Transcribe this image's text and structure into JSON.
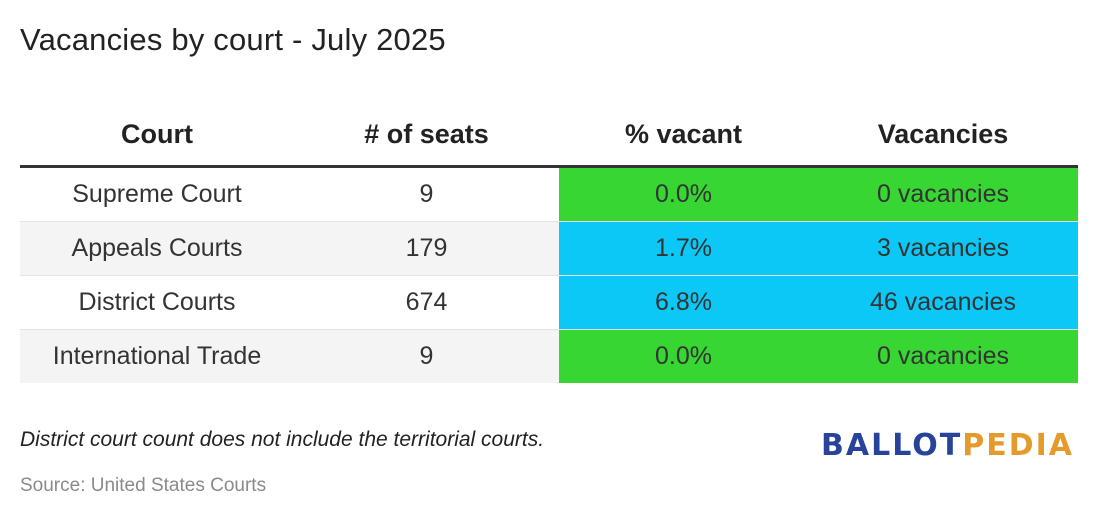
{
  "chart_data": {
    "type": "table",
    "title": "Vacancies by court - July 2025",
    "columns": [
      "Court",
      "# of seats",
      "% vacant",
      "Vacancies"
    ],
    "rows": [
      {
        "court": "Supreme Court",
        "seats": "9",
        "pct_vacant": "0.0%",
        "vacancies": "0 vacancies",
        "highlight": "#37d633"
      },
      {
        "court": "Appeals Courts",
        "seats": "179",
        "pct_vacant": "1.7%",
        "vacancies": "3 vacancies",
        "highlight": "#0bc8f7"
      },
      {
        "court": "District Courts",
        "seats": "674",
        "pct_vacant": "6.8%",
        "vacancies": "46 vacancies",
        "highlight": "#0bc8f7"
      },
      {
        "court": "International Trade",
        "seats": "9",
        "pct_vacant": "0.0%",
        "vacancies": "0 vacancies",
        "highlight": "#37d633"
      }
    ]
  },
  "footnote": "District court count does not include the territorial courts.",
  "source": "Source: United States Courts",
  "logo": {
    "part1": "BALLOT",
    "part2": "PEDIA",
    "color1": "#27449a",
    "color2": "#e49b2b"
  }
}
